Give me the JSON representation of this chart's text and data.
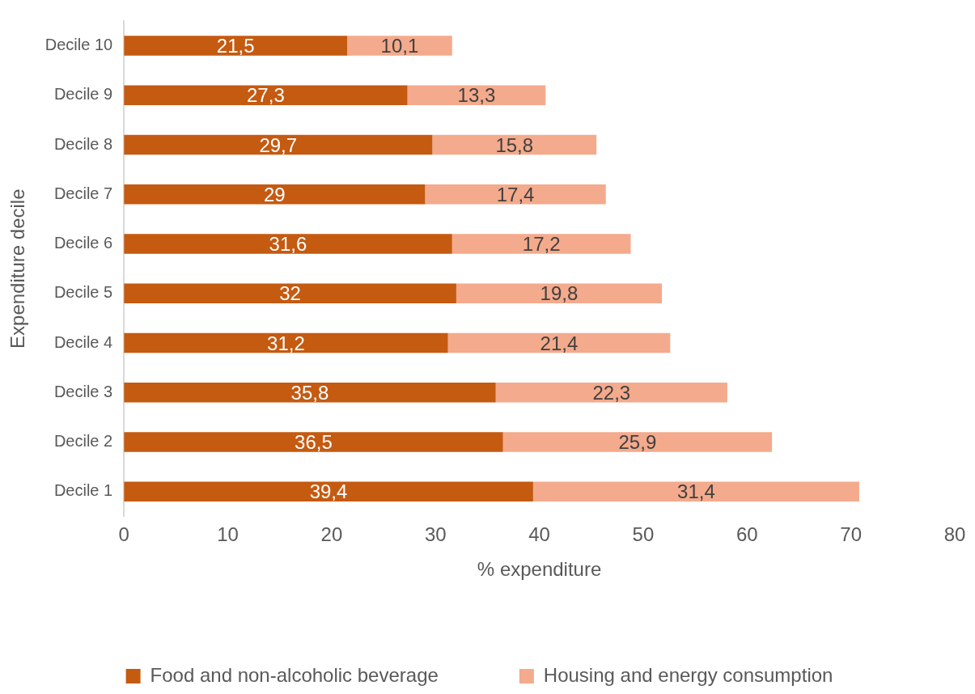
{
  "chart_data": {
    "type": "bar",
    "orientation": "horizontal",
    "stacked": true,
    "xlabel": "% expenditure",
    "ylabel": "Expenditure decile",
    "categories": [
      "Decile 10",
      "Decile 9",
      "Decile 8",
      "Decile 7",
      "Decile 6",
      "Decile 5",
      "Decile 4",
      "Decile 3",
      "Decile 2",
      "Decile 1"
    ],
    "series": [
      {
        "name": "Food and non-alcoholic beverage",
        "color": "#c55a11",
        "values": [
          21.5,
          27.3,
          29.7,
          29,
          31.6,
          32,
          31.2,
          35.8,
          36.5,
          39.4
        ],
        "value_labels": [
          "21,5",
          "27,3",
          "29,7",
          "29",
          "31,6",
          "32",
          "31,2",
          "35,8",
          "36,5",
          "39,4"
        ]
      },
      {
        "name": "Housing and energy consumption",
        "color": "#f4aa8c",
        "values": [
          10.1,
          13.3,
          15.8,
          17.4,
          17.2,
          19.8,
          21.4,
          22.3,
          25.9,
          31.4
        ],
        "value_labels": [
          "10,1",
          "13,3",
          "15,8",
          "17,4",
          "17,2",
          "19,8",
          "21,4",
          "22,3",
          "25,9",
          "31,4"
        ]
      }
    ],
    "xlim": [
      0,
      80
    ],
    "xticks": [
      0,
      10,
      20,
      30,
      40,
      50,
      60,
      70,
      80
    ],
    "grid": false,
    "legend": "bottom"
  }
}
